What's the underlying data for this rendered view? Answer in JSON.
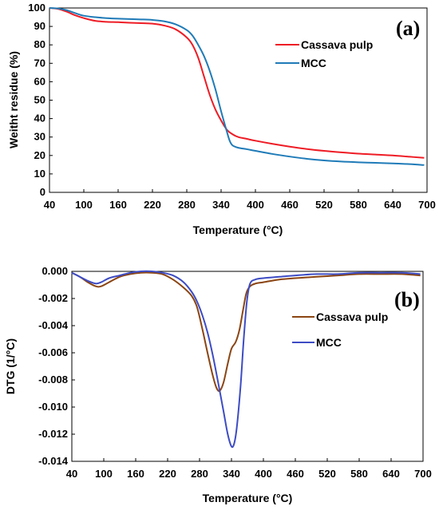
{
  "chart_data": [
    {
      "type": "line",
      "panel_label": "a",
      "xlabel": "Temperature (°C)",
      "ylabel": "Weitht residue (%)",
      "xlim": [
        40,
        700
      ],
      "ylim": [
        0,
        100
      ],
      "xticks": [
        40,
        100,
        160,
        220,
        280,
        340,
        400,
        460,
        520,
        580,
        640,
        700
      ],
      "yticks": [
        0,
        10,
        20,
        30,
        40,
        50,
        60,
        70,
        80,
        90,
        100
      ],
      "grid": false,
      "legend": "top-right",
      "series": [
        {
          "name": "Cassava pulp",
          "color": "#ee1c25",
          "points": [
            [
              40,
              100
            ],
            [
              55,
              99.5
            ],
            [
              70,
              98
            ],
            [
              85,
              96
            ],
            [
              100,
              94.5
            ],
            [
              120,
              93
            ],
            [
              140,
              92.5
            ],
            [
              160,
              92.3
            ],
            [
              180,
              92
            ],
            [
              200,
              91.8
            ],
            [
              220,
              91.5
            ],
            [
              240,
              90.5
            ],
            [
              260,
              88.5
            ],
            [
              280,
              84
            ],
            [
              290,
              80
            ],
            [
              300,
              73
            ],
            [
              310,
              63
            ],
            [
              320,
              53
            ],
            [
              330,
              45
            ],
            [
              340,
              39
            ],
            [
              350,
              34
            ],
            [
              360,
              31.5
            ],
            [
              370,
              30
            ],
            [
              385,
              29
            ],
            [
              400,
              28
            ],
            [
              430,
              26.3
            ],
            [
              460,
              24.8
            ],
            [
              490,
              23.5
            ],
            [
              520,
              22.5
            ],
            [
              550,
              21.7
            ],
            [
              580,
              21
            ],
            [
              610,
              20.5
            ],
            [
              640,
              20
            ],
            [
              670,
              19.3
            ],
            [
              695,
              18.7
            ]
          ]
        },
        {
          "name": "MCC",
          "color": "#1f7bb8",
          "points": [
            [
              40,
              100
            ],
            [
              55,
              99.7
            ],
            [
              70,
              98.8
            ],
            [
              85,
              97.2
            ],
            [
              100,
              95.8
            ],
            [
              120,
              95
            ],
            [
              140,
              94.5
            ],
            [
              160,
              94.2
            ],
            [
              180,
              94
            ],
            [
              200,
              93.8
            ],
            [
              220,
              93.5
            ],
            [
              240,
              92.8
            ],
            [
              260,
              91.2
            ],
            [
              280,
              88
            ],
            [
              290,
              85
            ],
            [
              300,
              80
            ],
            [
              310,
              74
            ],
            [
              320,
              66
            ],
            [
              330,
              56
            ],
            [
              340,
              44
            ],
            [
              350,
              33
            ],
            [
              355,
              28
            ],
            [
              360,
              25.5
            ],
            [
              370,
              24.2
            ],
            [
              385,
              23.4
            ],
            [
              400,
              22.5
            ],
            [
              430,
              20.8
            ],
            [
              460,
              19.4
            ],
            [
              490,
              18.2
            ],
            [
              520,
              17.3
            ],
            [
              550,
              16.7
            ],
            [
              580,
              16.3
            ],
            [
              610,
              16
            ],
            [
              640,
              15.7
            ],
            [
              670,
              15.3
            ],
            [
              695,
              14.8
            ]
          ]
        }
      ]
    },
    {
      "type": "line",
      "panel_label": "b",
      "xlabel": "Temperature (°C)",
      "ylabel": "DTG (1/°C)",
      "xlim": [
        40,
        700
      ],
      "ylim": [
        -0.014,
        0.0
      ],
      "xticks": [
        40,
        100,
        160,
        220,
        280,
        340,
        400,
        460,
        520,
        580,
        640,
        700
      ],
      "yticks": [
        0.0,
        -0.002,
        -0.004,
        -0.006,
        -0.008,
        -0.01,
        -0.012,
        -0.014
      ],
      "ytick_labels": [
        "0.000",
        "-0.002",
        "-0.004",
        "-0.006",
        "-0.008",
        "-0.010",
        "-0.012",
        "-0.014"
      ],
      "grid": false,
      "legend": "right",
      "series": [
        {
          "name": "Cassava pulp",
          "color": "#8b4513",
          "points": [
            [
              40,
              -0.0001
            ],
            [
              55,
              -0.0004
            ],
            [
              70,
              -0.0008
            ],
            [
              85,
              -0.0011
            ],
            [
              95,
              -0.0011
            ],
            [
              110,
              -0.0008
            ],
            [
              130,
              -0.0004
            ],
            [
              150,
              -0.0002
            ],
            [
              170,
              -0.0001
            ],
            [
              190,
              -0.0001
            ],
            [
              210,
              -0.0002
            ],
            [
              230,
              -0.0006
            ],
            [
              250,
              -0.0012
            ],
            [
              265,
              -0.0018
            ],
            [
              275,
              -0.0026
            ],
            [
              285,
              -0.0042
            ],
            [
              295,
              -0.006
            ],
            [
              305,
              -0.0077
            ],
            [
              312,
              -0.0086
            ],
            [
              318,
              -0.0088
            ],
            [
              325,
              -0.0082
            ],
            [
              333,
              -0.0068
            ],
            [
              340,
              -0.0057
            ],
            [
              348,
              -0.0052
            ],
            [
              355,
              -0.0043
            ],
            [
              362,
              -0.0028
            ],
            [
              368,
              -0.0016
            ],
            [
              375,
              -0.0011
            ],
            [
              385,
              -0.0009
            ],
            [
              400,
              -0.0008
            ],
            [
              430,
              -0.0006
            ],
            [
              460,
              -0.0005
            ],
            [
              500,
              -0.0004
            ],
            [
              540,
              -0.0003
            ],
            [
              580,
              -0.0002
            ],
            [
              620,
              -0.0002
            ],
            [
              660,
              -0.0002
            ],
            [
              695,
              -0.0003
            ]
          ]
        },
        {
          "name": "MCC",
          "color": "#3d4cc4",
          "points": [
            [
              40,
              -0.0001
            ],
            [
              55,
              -0.0004
            ],
            [
              70,
              -0.0007
            ],
            [
              85,
              -0.0009
            ],
            [
              95,
              -0.0008
            ],
            [
              110,
              -0.0005
            ],
            [
              130,
              -0.0003
            ],
            [
              150,
              -0.0001
            ],
            [
              170,
              0.0
            ],
            [
              190,
              0.0
            ],
            [
              210,
              -0.0001
            ],
            [
              230,
              -0.0003
            ],
            [
              250,
              -0.0008
            ],
            [
              265,
              -0.0015
            ],
            [
              275,
              -0.0022
            ],
            [
              285,
              -0.0032
            ],
            [
              295,
              -0.0045
            ],
            [
              305,
              -0.0062
            ],
            [
              315,
              -0.0082
            ],
            [
              325,
              -0.0103
            ],
            [
              333,
              -0.012
            ],
            [
              340,
              -0.0129
            ],
            [
              345,
              -0.0127
            ],
            [
              350,
              -0.0115
            ],
            [
              357,
              -0.0085
            ],
            [
              363,
              -0.005
            ],
            [
              369,
              -0.0022
            ],
            [
              375,
              -0.0009
            ],
            [
              385,
              -0.0006
            ],
            [
              400,
              -0.0005
            ],
            [
              430,
              -0.0004
            ],
            [
              460,
              -0.0003
            ],
            [
              500,
              -0.0002
            ],
            [
              540,
              -0.0002
            ],
            [
              580,
              -0.0001
            ],
            [
              620,
              -0.0001
            ],
            [
              660,
              -0.0001
            ],
            [
              695,
              -0.0002
            ]
          ]
        }
      ]
    }
  ]
}
